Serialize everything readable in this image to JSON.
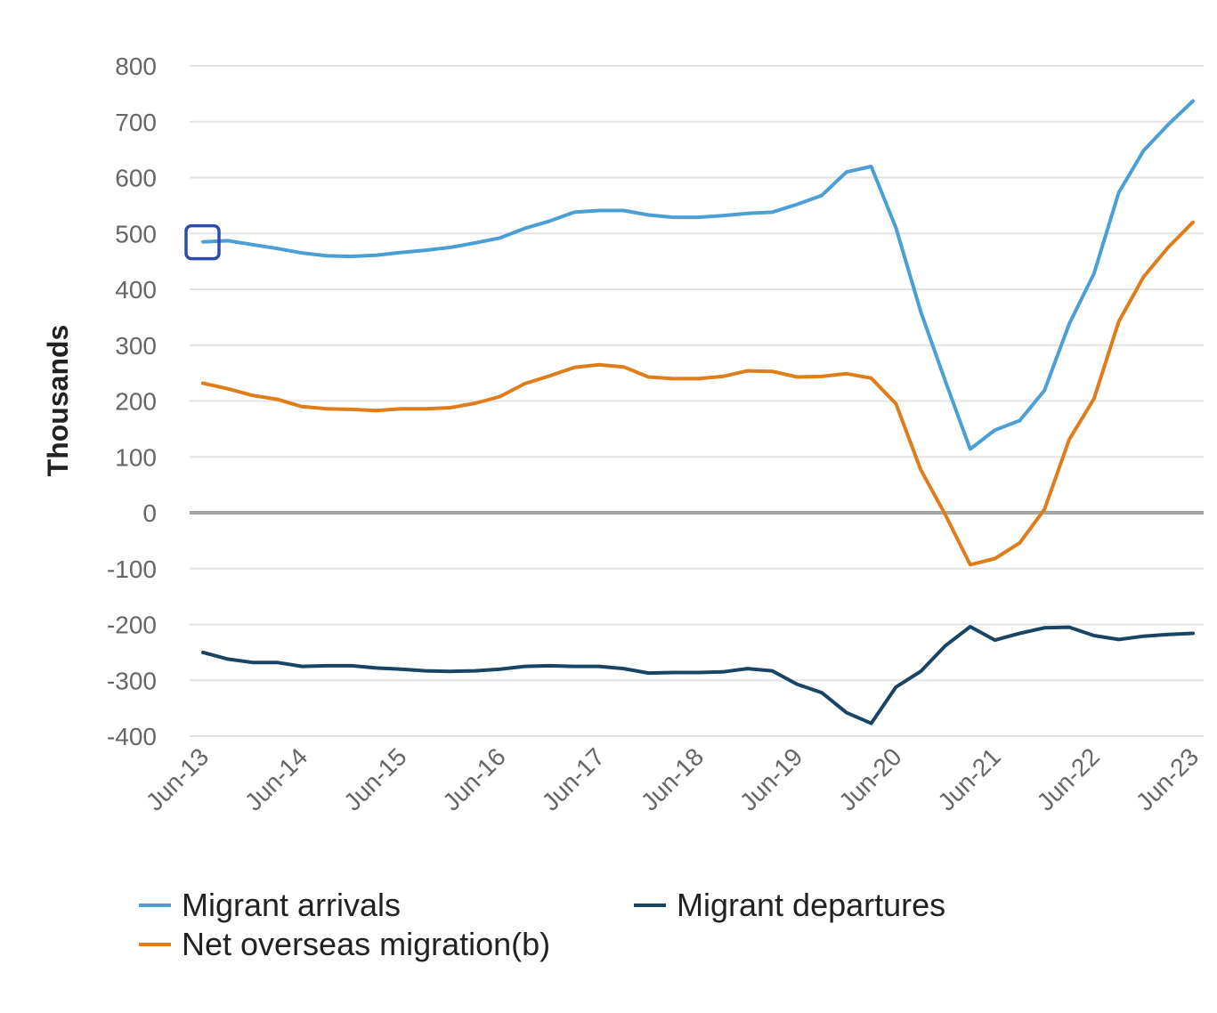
{
  "chart_data": {
    "type": "line",
    "ylabel": "Thousands",
    "ylim": [
      -400,
      800
    ],
    "yticks": [
      "800",
      "700",
      "600",
      "500",
      "400",
      "300",
      "200",
      "100",
      "0",
      "-100",
      "-200",
      "-300",
      "-400"
    ],
    "ytick_values": [
      800,
      700,
      600,
      500,
      400,
      300,
      200,
      100,
      0,
      -100,
      -200,
      -300,
      -400
    ],
    "xtick_labels": [
      "Jun-13",
      "Jun-14",
      "Jun-15",
      "Jun-16",
      "Jun-17",
      "Jun-18",
      "Jun-19",
      "Jun-20",
      "Jun-21",
      "Jun-22",
      "Jun-23"
    ],
    "x": [
      "Jun-13",
      "Sep-13",
      "Dec-13",
      "Mar-14",
      "Jun-14",
      "Sep-14",
      "Dec-14",
      "Mar-15",
      "Jun-15",
      "Sep-15",
      "Dec-15",
      "Mar-16",
      "Jun-16",
      "Sep-16",
      "Dec-16",
      "Mar-17",
      "Jun-17",
      "Sep-17",
      "Dec-17",
      "Mar-18",
      "Jun-18",
      "Sep-18",
      "Dec-18",
      "Mar-19",
      "Jun-19",
      "Sep-19",
      "Dec-19",
      "Mar-20",
      "Jun-20",
      "Sep-20",
      "Dec-20",
      "Mar-21",
      "Jun-21",
      "Sep-21",
      "Dec-21",
      "Mar-22",
      "Jun-22",
      "Sep-22",
      "Dec-22",
      "Mar-23",
      "Jun-23"
    ],
    "series": [
      {
        "name": "Migrant arrivals",
        "color": "#4a9fd4",
        "values": [
          485,
          487,
          480,
          473,
          465,
          460,
          459,
          461,
          466,
          470,
          475,
          483,
          492,
          509,
          522,
          538,
          541,
          541,
          533,
          529,
          529,
          532,
          536,
          538,
          552,
          568,
          610,
          620,
          510,
          360,
          235,
          114,
          148,
          165,
          219,
          338,
          428,
          573,
          648,
          695,
          737
        ]
      },
      {
        "name": "Net overseas migration(b)",
        "color": "#e07d1b",
        "values": [
          232,
          222,
          210,
          203,
          190,
          186,
          185,
          183,
          186,
          186,
          188,
          196,
          208,
          231,
          245,
          260,
          265,
          261,
          243,
          240,
          240,
          244,
          254,
          253,
          243,
          244,
          249,
          241,
          195,
          77,
          -4,
          -93,
          -82,
          -54,
          6,
          131,
          204,
          342,
          422,
          475,
          520
        ]
      },
      {
        "name": "Migrant departures",
        "color": "#1a4464",
        "values": [
          -250,
          -262,
          -268,
          -268,
          -275,
          -274,
          -274,
          -278,
          -280,
          -283,
          -284,
          -283,
          -280,
          -275,
          -274,
          -275,
          -275,
          -279,
          -287,
          -286,
          -286,
          -285,
          -279,
          -283,
          -307,
          -322,
          -358,
          -377,
          -312,
          -284,
          -238,
          -204,
          -228,
          -216,
          -206,
          -205,
          -220,
          -227,
          -221,
          -218,
          -216
        ]
      }
    ],
    "legend_position": "bottom",
    "grid": true
  },
  "legend": {
    "arrivals": "Migrant arrivals",
    "departures": "Migrant departures",
    "net": "Net overseas migration(b)"
  },
  "highlight": {
    "series": "Migrant arrivals",
    "point": "Jun-13",
    "color": "#2e4ca8"
  }
}
